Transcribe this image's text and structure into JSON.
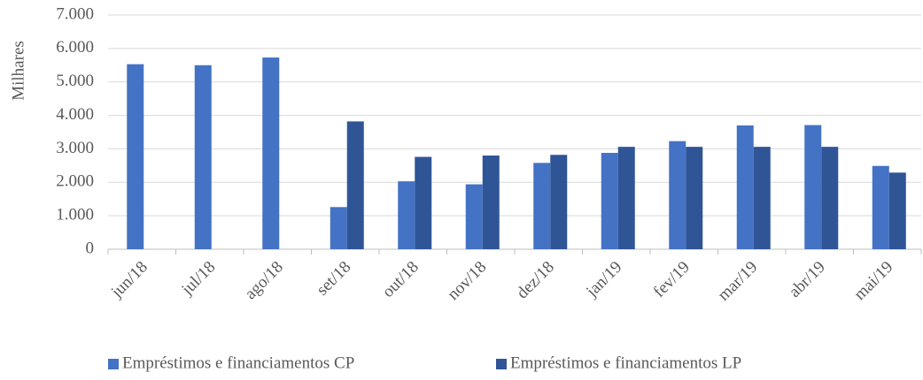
{
  "chart_data": {
    "type": "bar",
    "y_label": "Milhares",
    "categories": [
      "jun/18",
      "jul/18",
      "ago/18",
      "set/18",
      "out/18",
      "nov/18",
      "dez/18",
      "jan/19",
      "fev/19",
      "mar/19",
      "abr/19",
      "mai/19"
    ],
    "series": [
      {
        "name": "Empréstimos e financiamentos CP",
        "color": "#4472c4",
        "values": [
          5530,
          5500,
          5730,
          1260,
          2030,
          1940,
          2580,
          2880,
          3230,
          3700,
          3710,
          2490
        ]
      },
      {
        "name": "Empréstimos e financiamentos LP",
        "color": "#2f5597",
        "values": [
          null,
          null,
          null,
          3820,
          2760,
          2800,
          2820,
          3060,
          3060,
          3060,
          3060,
          2290
        ]
      }
    ],
    "ylim": [
      0,
      7000
    ],
    "yticks": [
      0,
      {
        "value": 1000,
        "label": "1.000"
      },
      {
        "value": 2000,
        "label": "2.000"
      },
      {
        "value": 3000,
        "label": "3.000"
      },
      {
        "value": 4000,
        "label": "4.000"
      },
      {
        "value": 5000,
        "label": "5.000"
      },
      {
        "value": 6000,
        "label": "6.000"
      },
      {
        "value": 7000,
        "label": "7.000"
      }
    ],
    "grid": true,
    "legend": "bottom"
  }
}
